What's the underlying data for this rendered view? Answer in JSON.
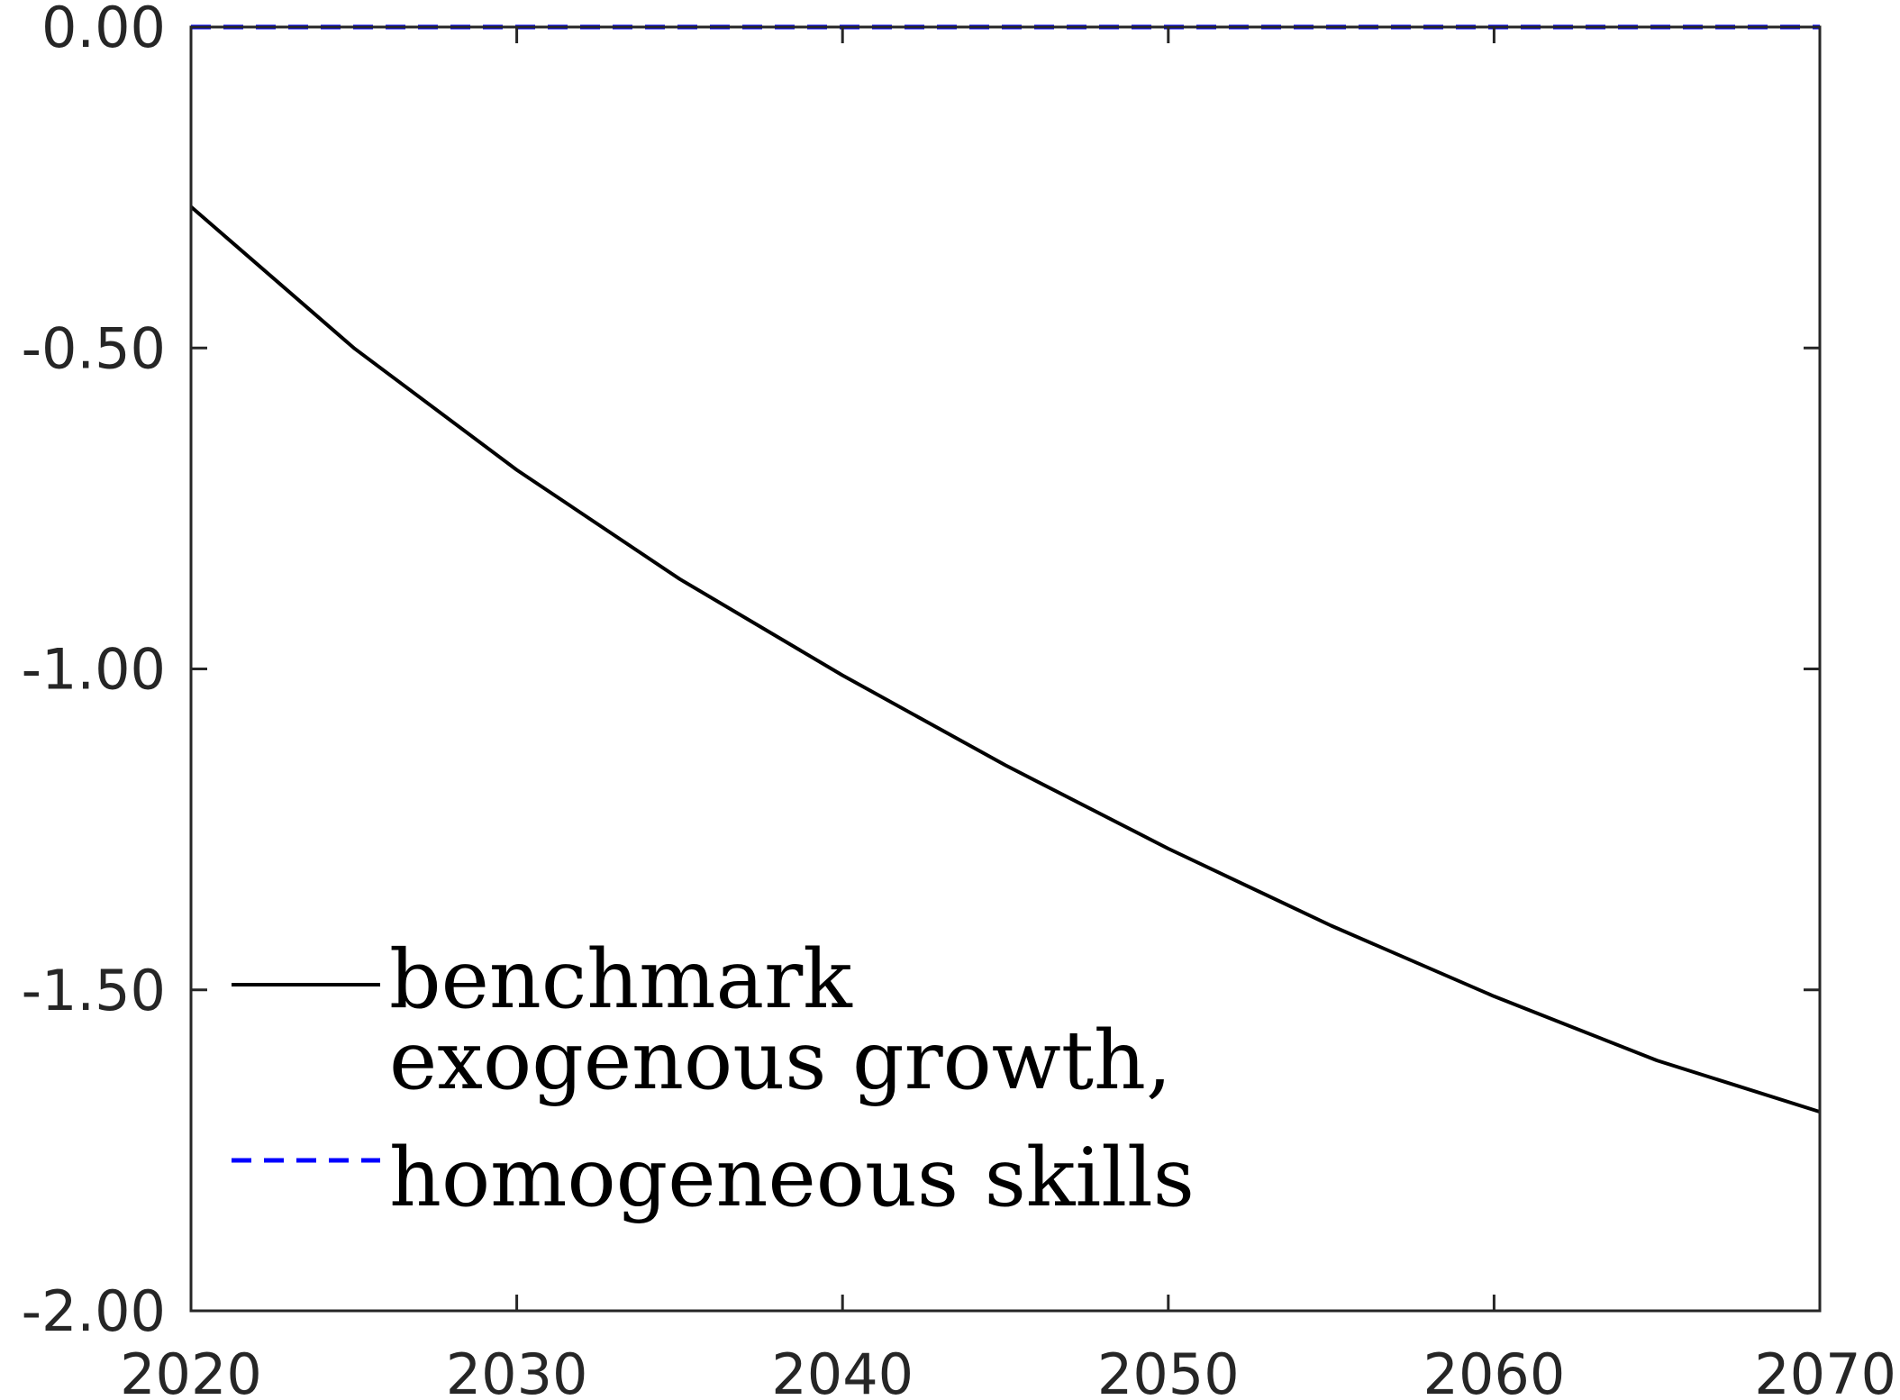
{
  "chart_data": {
    "type": "line",
    "title": "",
    "xlabel": "",
    "ylabel": "",
    "xlim": [
      2020,
      2070
    ],
    "ylim": [
      -2.0,
      0.0
    ],
    "x_ticks": [
      {
        "value": 2020,
        "label": "2020"
      },
      {
        "value": 2030,
        "label": "2030"
      },
      {
        "value": 2040,
        "label": "2040"
      },
      {
        "value": 2050,
        "label": "2050"
      },
      {
        "value": 2060,
        "label": "2060"
      },
      {
        "value": 2070,
        "label": "2070"
      }
    ],
    "y_ticks": [
      {
        "value": 0.0,
        "label": "0.00"
      },
      {
        "value": -0.5,
        "label": "-0.50"
      },
      {
        "value": -1.0,
        "label": "-1.00"
      },
      {
        "value": -1.5,
        "label": "-1.50"
      },
      {
        "value": -2.0,
        "label": "-2.00"
      }
    ],
    "grid": false,
    "legend": {
      "placement": "bottom-left",
      "entries": [
        {
          "lines": [
            "benchmark"
          ],
          "series_index": 0
        },
        {
          "lines": [
            "exogenous growth,",
            "homogeneous skills"
          ],
          "series_index": 1
        }
      ]
    },
    "series": [
      {
        "name": "benchmark",
        "color": "#000000",
        "dash": "solid",
        "x": [
          2020,
          2025,
          2030,
          2035,
          2040,
          2045,
          2050,
          2055,
          2060,
          2065,
          2070
        ],
        "y": [
          -0.28,
          -0.5,
          -0.69,
          -0.86,
          -1.01,
          -1.15,
          -1.28,
          -1.4,
          -1.51,
          -1.61,
          -1.69
        ]
      },
      {
        "name": "exogenous growth, homogeneous skills",
        "color": "#0000ff",
        "dash": "dashed",
        "x": [
          2020,
          2025,
          2030,
          2035,
          2040,
          2045,
          2050,
          2055,
          2060,
          2065,
          2070
        ],
        "y": [
          0.0,
          0.0,
          0.0,
          0.0,
          0.0,
          0.0,
          0.0,
          0.0,
          0.0,
          0.0,
          0.0
        ]
      }
    ]
  }
}
